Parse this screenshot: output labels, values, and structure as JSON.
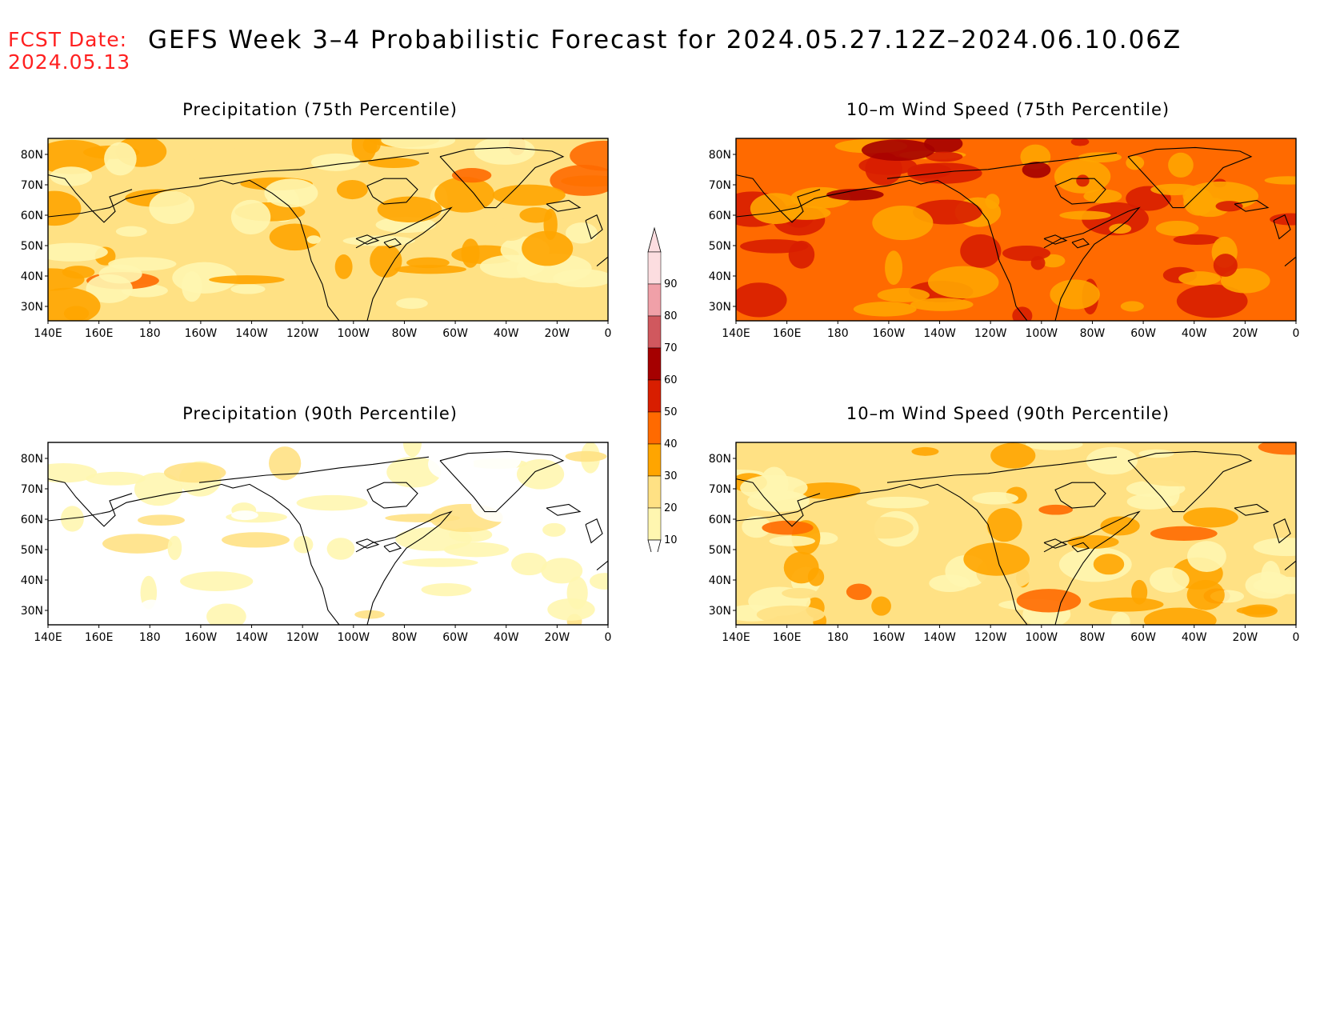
{
  "header": {
    "fcst_label": "FCST Date:",
    "fcst_date": "2024.05.13",
    "title": "GEFS Week 3–4 Probabilistic Forecast for 2024.05.27.12Z–2024.06.10.06Z"
  },
  "axes": {
    "lon_ticks": [
      "140E",
      "160E",
      "180",
      "160W",
      "140W",
      "120W",
      "100W",
      "80W",
      "60W",
      "40W",
      "20W",
      "0"
    ],
    "lat_ticks": [
      "80N",
      "70N",
      "60N",
      "50N",
      "40N",
      "30N"
    ]
  },
  "panels": [
    {
      "id": "precip75",
      "title": "Precipitation (75th Percentile)",
      "base_level": 20
    },
    {
      "id": "wind75",
      "title": "10–m Wind Speed (75th Percentile)",
      "base_level": 40
    },
    {
      "id": "precip90",
      "title": "Precipitation (90th Percentile)",
      "base_level": 0
    },
    {
      "id": "wind90",
      "title": "10–m Wind Speed (90th Percentile)",
      "base_level": 20
    }
  ],
  "legend": {
    "labels": [
      "10",
      "20",
      "30",
      "40",
      "50",
      "60",
      "70",
      "80",
      "90"
    ],
    "colors": [
      "#ffffff",
      "#fff6b0",
      "#ffe184",
      "#ffa500",
      "#ff6a00",
      "#d81e00",
      "#a50000",
      "#d0585e",
      "#f0a0a8",
      "#fcdde0"
    ]
  }
}
